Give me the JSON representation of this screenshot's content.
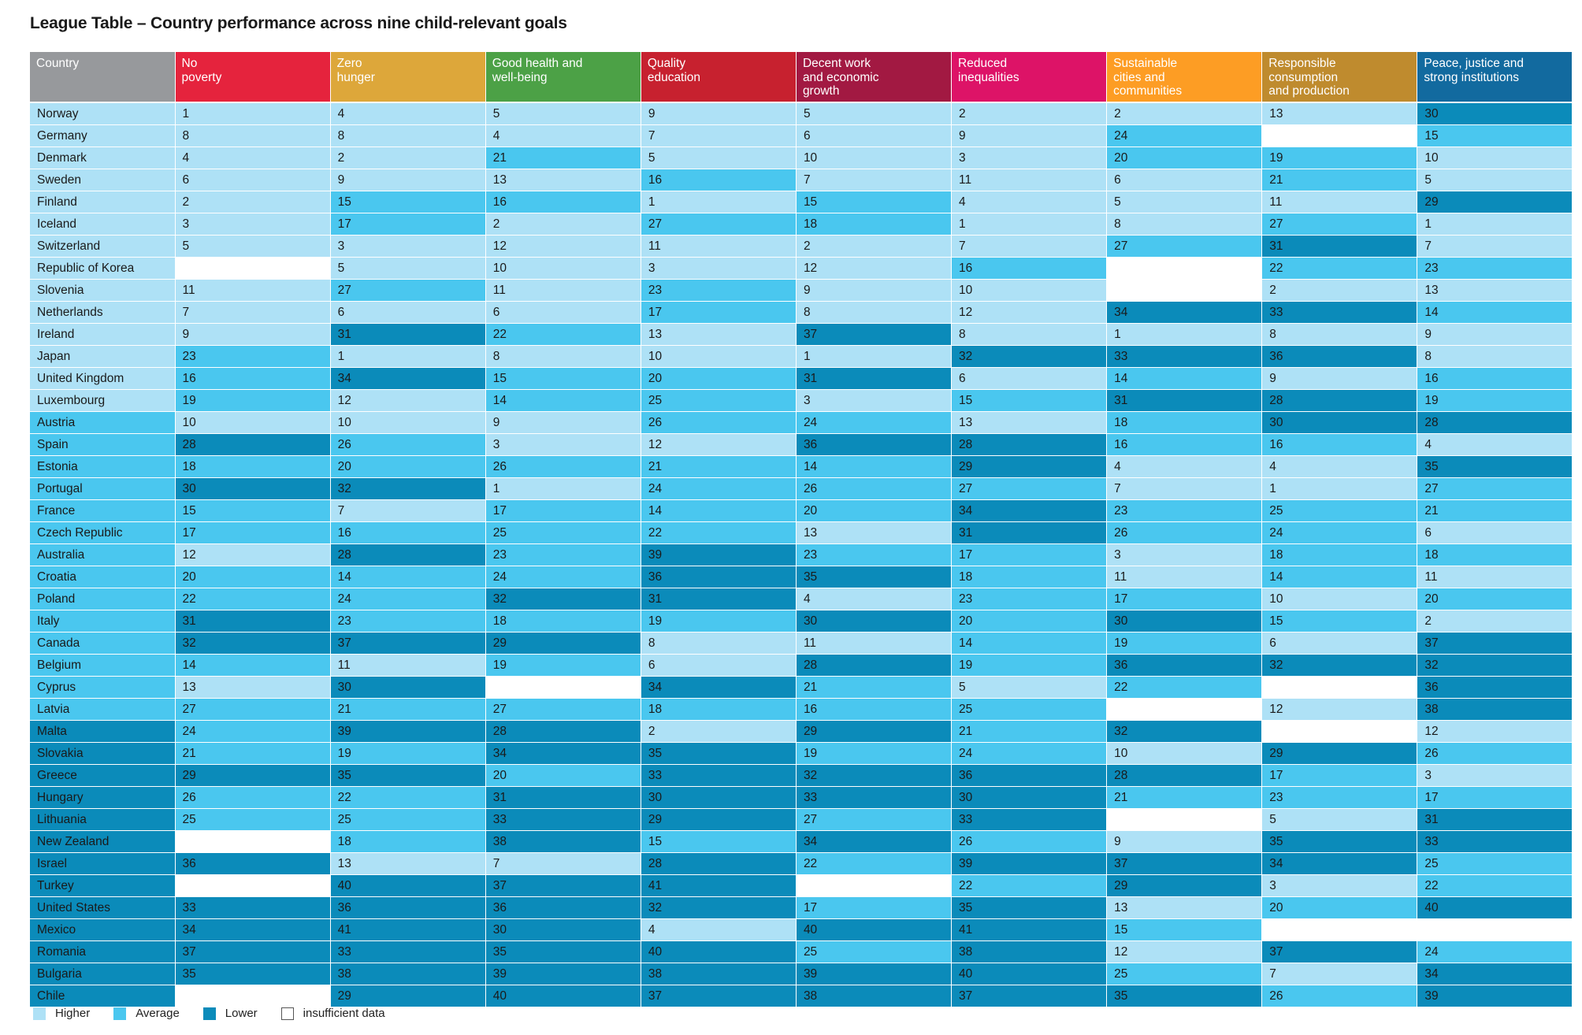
{
  "page": {
    "title": "League Table – Country performance across nine child-relevant goals"
  },
  "chart_data": {
    "type": "table",
    "title": "League Table – Country performance across nine child-relevant goals",
    "country_header": "Country",
    "country_header_color": "#97999c",
    "goals": [
      {
        "label": "No\npoverty",
        "color": "#e5233d"
      },
      {
        "label": "Zero\nhunger",
        "color": "#dda73a"
      },
      {
        "label": "Good health and\nwell-being",
        "color": "#4ca146"
      },
      {
        "label": "Quality\neducation",
        "color": "#c7212f"
      },
      {
        "label": "Decent work\nand economic\ngrowth",
        "color": "#a21942"
      },
      {
        "label": "Reduced\ninequalities",
        "color": "#dd1367"
      },
      {
        "label": "Sustainable\ncities and\ncommunities",
        "color": "#fd9d24"
      },
      {
        "label": "Responsible\nconsumption\nand production",
        "color": "#bf8b2e"
      },
      {
        "label": "Peace, justice and\nstrong institutions",
        "color": "#126a9f"
      }
    ],
    "level_colors": {
      "higher": "#aee1f6",
      "average": "#4ac7ef",
      "lower": "#0b8bba",
      "insufficient": "#ffffff"
    },
    "legend": [
      {
        "key": "higher",
        "label": "Higher"
      },
      {
        "key": "average",
        "label": "Average"
      },
      {
        "key": "lower",
        "label": "Lower"
      },
      {
        "key": "insufficient",
        "label": "insufficient data"
      }
    ],
    "rows": [
      {
        "country": "Norway",
        "level": "higher",
        "ranks": [
          1,
          4,
          5,
          9,
          5,
          2,
          2,
          13,
          30
        ]
      },
      {
        "country": "Germany",
        "level": "higher",
        "ranks": [
          8,
          8,
          4,
          7,
          6,
          9,
          24,
          null,
          15
        ]
      },
      {
        "country": "Denmark",
        "level": "higher",
        "ranks": [
          4,
          2,
          21,
          5,
          10,
          3,
          20,
          19,
          10
        ]
      },
      {
        "country": "Sweden",
        "level": "higher",
        "ranks": [
          6,
          9,
          13,
          16,
          7,
          11,
          6,
          21,
          5
        ]
      },
      {
        "country": "Finland",
        "level": "higher",
        "ranks": [
          2,
          15,
          16,
          1,
          15,
          4,
          5,
          11,
          29
        ]
      },
      {
        "country": "Iceland",
        "level": "higher",
        "ranks": [
          3,
          17,
          2,
          27,
          18,
          1,
          8,
          27,
          1
        ]
      },
      {
        "country": "Switzerland",
        "level": "higher",
        "ranks": [
          5,
          3,
          12,
          11,
          2,
          7,
          27,
          31,
          7
        ]
      },
      {
        "country": "Republic of Korea",
        "level": "higher",
        "ranks": [
          null,
          5,
          10,
          3,
          12,
          16,
          null,
          22,
          23
        ]
      },
      {
        "country": "Slovenia",
        "level": "higher",
        "ranks": [
          11,
          27,
          11,
          23,
          9,
          10,
          null,
          2,
          13
        ]
      },
      {
        "country": "Netherlands",
        "level": "higher",
        "ranks": [
          7,
          6,
          6,
          17,
          8,
          12,
          34,
          33,
          14
        ]
      },
      {
        "country": "Ireland",
        "level": "higher",
        "ranks": [
          9,
          31,
          22,
          13,
          37,
          8,
          1,
          8,
          9
        ]
      },
      {
        "country": "Japan",
        "level": "higher",
        "ranks": [
          23,
          1,
          8,
          10,
          1,
          32,
          33,
          36,
          8
        ]
      },
      {
        "country": "United Kingdom",
        "level": "higher",
        "ranks": [
          16,
          34,
          15,
          20,
          31,
          6,
          14,
          9,
          16
        ]
      },
      {
        "country": "Luxembourg",
        "level": "higher",
        "ranks": [
          19,
          12,
          14,
          25,
          3,
          15,
          31,
          28,
          19
        ]
      },
      {
        "country": "Austria",
        "level": "average",
        "ranks": [
          10,
          10,
          9,
          26,
          24,
          13,
          18,
          30,
          28
        ]
      },
      {
        "country": "Spain",
        "level": "average",
        "ranks": [
          28,
          26,
          3,
          12,
          36,
          28,
          16,
          16,
          4
        ]
      },
      {
        "country": "Estonia",
        "level": "average",
        "ranks": [
          18,
          20,
          26,
          21,
          14,
          29,
          4,
          4,
          35
        ]
      },
      {
        "country": "Portugal",
        "level": "average",
        "ranks": [
          30,
          32,
          1,
          24,
          26,
          27,
          7,
          1,
          27
        ]
      },
      {
        "country": "France",
        "level": "average",
        "ranks": [
          15,
          7,
          17,
          14,
          20,
          34,
          23,
          25,
          21
        ]
      },
      {
        "country": "Czech Republic",
        "level": "average",
        "ranks": [
          17,
          16,
          25,
          22,
          13,
          31,
          26,
          24,
          6
        ]
      },
      {
        "country": "Australia",
        "level": "average",
        "ranks": [
          12,
          28,
          23,
          39,
          23,
          17,
          3,
          18,
          18
        ]
      },
      {
        "country": "Croatia",
        "level": "average",
        "ranks": [
          20,
          14,
          24,
          36,
          35,
          18,
          11,
          14,
          11
        ]
      },
      {
        "country": "Poland",
        "level": "average",
        "ranks": [
          22,
          24,
          32,
          31,
          4,
          23,
          17,
          10,
          20
        ]
      },
      {
        "country": "Italy",
        "level": "average",
        "ranks": [
          31,
          23,
          18,
          19,
          30,
          20,
          30,
          15,
          2
        ]
      },
      {
        "country": "Canada",
        "level": "average",
        "ranks": [
          32,
          37,
          29,
          8,
          11,
          14,
          19,
          6,
          37
        ]
      },
      {
        "country": "Belgium",
        "level": "average",
        "ranks": [
          14,
          11,
          19,
          6,
          28,
          19,
          36,
          32,
          32
        ]
      },
      {
        "country": "Cyprus",
        "level": "average",
        "ranks": [
          13,
          30,
          null,
          34,
          21,
          5,
          22,
          null,
          36
        ]
      },
      {
        "country": "Latvia",
        "level": "average",
        "ranks": [
          27,
          21,
          27,
          18,
          16,
          25,
          null,
          12,
          38
        ]
      },
      {
        "country": "Malta",
        "level": "lower",
        "ranks": [
          24,
          39,
          28,
          2,
          29,
          21,
          32,
          null,
          12
        ]
      },
      {
        "country": "Slovakia",
        "level": "lower",
        "ranks": [
          21,
          19,
          34,
          35,
          19,
          24,
          10,
          29,
          26
        ]
      },
      {
        "country": "Greece",
        "level": "lower",
        "ranks": [
          29,
          35,
          20,
          33,
          32,
          36,
          28,
          17,
          3
        ]
      },
      {
        "country": "Hungary",
        "level": "lower",
        "ranks": [
          26,
          22,
          31,
          30,
          33,
          30,
          21,
          23,
          17
        ]
      },
      {
        "country": "Lithuania",
        "level": "lower",
        "ranks": [
          25,
          25,
          33,
          29,
          27,
          33,
          null,
          5,
          31
        ]
      },
      {
        "country": "New Zealand",
        "level": "lower",
        "ranks": [
          null,
          18,
          38,
          15,
          34,
          26,
          9,
          35,
          33
        ]
      },
      {
        "country": "Israel",
        "level": "lower",
        "ranks": [
          36,
          13,
          7,
          28,
          22,
          39,
          37,
          34,
          25
        ]
      },
      {
        "country": "Turkey",
        "level": "lower",
        "ranks": [
          null,
          40,
          37,
          41,
          null,
          22,
          29,
          3,
          22
        ]
      },
      {
        "country": "United States",
        "level": "lower",
        "ranks": [
          33,
          36,
          36,
          32,
          17,
          35,
          13,
          20,
          40
        ]
      },
      {
        "country": "Mexico",
        "level": "lower",
        "ranks": [
          34,
          41,
          30,
          4,
          40,
          41,
          15,
          null,
          null
        ]
      },
      {
        "country": "Romania",
        "level": "lower",
        "ranks": [
          37,
          33,
          35,
          40,
          25,
          38,
          12,
          37,
          24
        ]
      },
      {
        "country": "Bulgaria",
        "level": "lower",
        "ranks": [
          35,
          38,
          39,
          38,
          39,
          40,
          25,
          7,
          34
        ]
      },
      {
        "country": "Chile",
        "level": "lower",
        "ranks": [
          null,
          29,
          40,
          37,
          38,
          37,
          35,
          26,
          39
        ]
      }
    ]
  }
}
